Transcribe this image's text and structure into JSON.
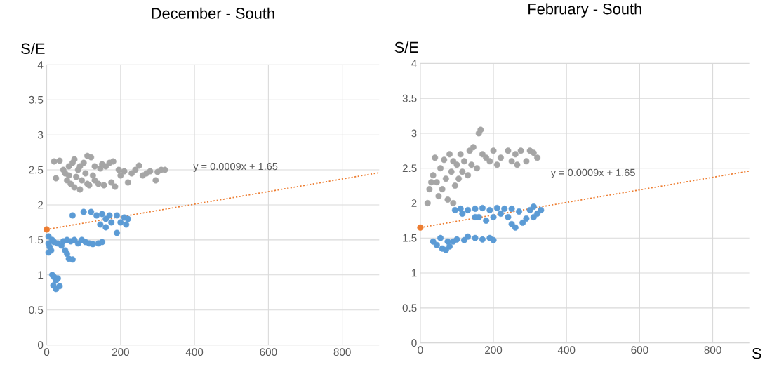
{
  "chart_data": [
    {
      "type": "scatter",
      "title": "December - South",
      "ylabel": "S/E",
      "xlim": [
        0,
        900
      ],
      "ylim": [
        0,
        4
      ],
      "xticks": [
        0,
        200,
        400,
        600,
        800
      ],
      "yticks": [
        0,
        0.5,
        1,
        1.5,
        2,
        2.5,
        3,
        3.5,
        4
      ],
      "grid": true,
      "marker": "circle",
      "annotations": [
        "y = 0.0009x + 1.65"
      ],
      "series": [
        {
          "color": "#a5a5a5",
          "x": [
            20,
            35,
            25,
            45,
            50,
            55,
            60,
            65,
            70,
            75,
            80,
            85,
            90,
            95,
            100,
            105,
            110,
            115,
            120,
            125,
            130,
            140,
            145,
            150,
            155,
            160,
            170,
            175,
            180,
            185,
            195,
            200,
            210,
            220,
            230,
            240,
            250,
            260,
            270,
            280,
            295,
            300,
            310,
            320,
            75,
            90,
            60,
            110,
            130
          ],
          "values": [
            2.62,
            2.63,
            2.38,
            2.5,
            2.45,
            2.35,
            2.55,
            2.3,
            2.6,
            2.25,
            2.4,
            2.5,
            2.22,
            2.35,
            2.6,
            2.45,
            2.7,
            2.28,
            2.68,
            2.42,
            2.55,
            2.3,
            2.52,
            2.58,
            2.28,
            2.55,
            2.6,
            2.32,
            2.62,
            2.26,
            2.5,
            2.42,
            2.48,
            2.32,
            2.45,
            2.5,
            2.56,
            2.42,
            2.45,
            2.48,
            2.35,
            2.47,
            2.5,
            2.5,
            2.65,
            2.55,
            2.42,
            2.3,
            2.35
          ]
        },
        {
          "color": "#5b9bd5",
          "x": [
            5,
            5,
            12,
            8,
            5,
            15,
            20,
            30,
            40,
            45,
            55,
            65,
            75,
            85,
            95,
            105,
            115,
            125,
            140,
            150,
            50,
            55,
            60,
            70,
            15,
            20,
            25,
            18,
            25,
            35,
            30,
            70,
            100,
            120,
            135,
            150,
            170,
            190,
            210,
            220,
            160,
            175,
            200,
            215,
            145,
            160,
            190
          ],
          "values": [
            1.55,
            1.45,
            1.35,
            1.4,
            1.32,
            1.5,
            1.47,
            1.45,
            1.42,
            1.48,
            1.5,
            1.48,
            1.5,
            1.45,
            1.5,
            1.47,
            1.45,
            1.44,
            1.45,
            1.47,
            1.35,
            1.3,
            1.23,
            1.22,
            1.0,
            0.97,
            0.92,
            0.85,
            0.8,
            0.84,
            0.95,
            1.85,
            1.9,
            1.9,
            1.85,
            1.87,
            1.85,
            1.85,
            1.82,
            1.8,
            1.8,
            1.75,
            1.75,
            1.72,
            1.72,
            1.68,
            1.6
          ]
        },
        {
          "type": "line",
          "color": "#ed7d31",
          "marker": "none",
          "line_style": "dotted",
          "x": [
            0,
            900
          ],
          "values": [
            1.65,
            2.46
          ]
        },
        {
          "color": "#ed7d31",
          "x": [
            0
          ],
          "values": [
            1.65
          ]
        }
      ]
    },
    {
      "type": "scatter",
      "title": "February - South",
      "ylabel": "S/E",
      "xlabel": "S",
      "xlim": [
        0,
        900
      ],
      "ylim": [
        0,
        4
      ],
      "xticks": [
        0,
        200,
        400,
        600,
        800
      ],
      "yticks": [
        0,
        0.5,
        1,
        1.5,
        2,
        2.5,
        3,
        3.5,
        4
      ],
      "grid": true,
      "marker": "circle",
      "annotations": [
        "y = 0.0009x + 1.65"
      ],
      "series": [
        {
          "color": "#a5a5a5",
          "x": [
            20,
            25,
            30,
            35,
            40,
            50,
            55,
            60,
            65,
            70,
            75,
            80,
            85,
            90,
            90,
            100,
            105,
            110,
            115,
            120,
            130,
            135,
            140,
            145,
            155,
            160,
            165,
            170,
            180,
            190,
            200,
            210,
            220,
            240,
            250,
            260,
            265,
            275,
            290,
            300,
            310,
            320,
            45,
            95
          ],
          "values": [
            2.0,
            2.2,
            2.3,
            2.4,
            2.65,
            2.1,
            2.5,
            2.2,
            2.62,
            2.35,
            2.05,
            2.7,
            2.45,
            2.0,
            2.6,
            2.55,
            2.35,
            2.7,
            2.45,
            2.6,
            2.4,
            2.75,
            2.55,
            2.8,
            2.5,
            3.0,
            3.05,
            2.7,
            2.65,
            2.6,
            2.75,
            2.55,
            2.65,
            2.75,
            2.6,
            2.7,
            2.55,
            2.75,
            2.6,
            2.75,
            2.72,
            2.65,
            2.3,
            2.25
          ]
        },
        {
          "color": "#5b9bd5",
          "x": [
            35,
            45,
            55,
            60,
            70,
            75,
            90,
            100,
            120,
            130,
            150,
            170,
            190,
            200,
            80,
            95,
            110,
            115,
            130,
            150,
            170,
            190,
            210,
            230,
            250,
            160,
            180,
            200,
            220,
            240,
            250,
            260,
            280,
            290,
            300,
            310,
            320,
            330,
            310,
            270,
            150
          ],
          "values": [
            1.45,
            1.4,
            1.5,
            1.35,
            1.33,
            1.45,
            1.45,
            1.48,
            1.47,
            1.52,
            1.5,
            1.48,
            1.5,
            1.47,
            1.38,
            1.9,
            1.92,
            1.85,
            1.9,
            1.92,
            1.93,
            1.9,
            1.93,
            1.92,
            1.92,
            1.8,
            1.75,
            1.8,
            1.85,
            1.8,
            1.7,
            1.65,
            1.72,
            1.78,
            1.9,
            1.95,
            1.85,
            1.9,
            1.8,
            1.88,
            1.8
          ]
        },
        {
          "type": "line",
          "color": "#ed7d31",
          "marker": "none",
          "line_style": "dotted",
          "x": [
            0,
            900
          ],
          "values": [
            1.65,
            2.46
          ]
        },
        {
          "color": "#ed7d31",
          "x": [
            0
          ],
          "values": [
            1.65
          ]
        }
      ]
    }
  ]
}
